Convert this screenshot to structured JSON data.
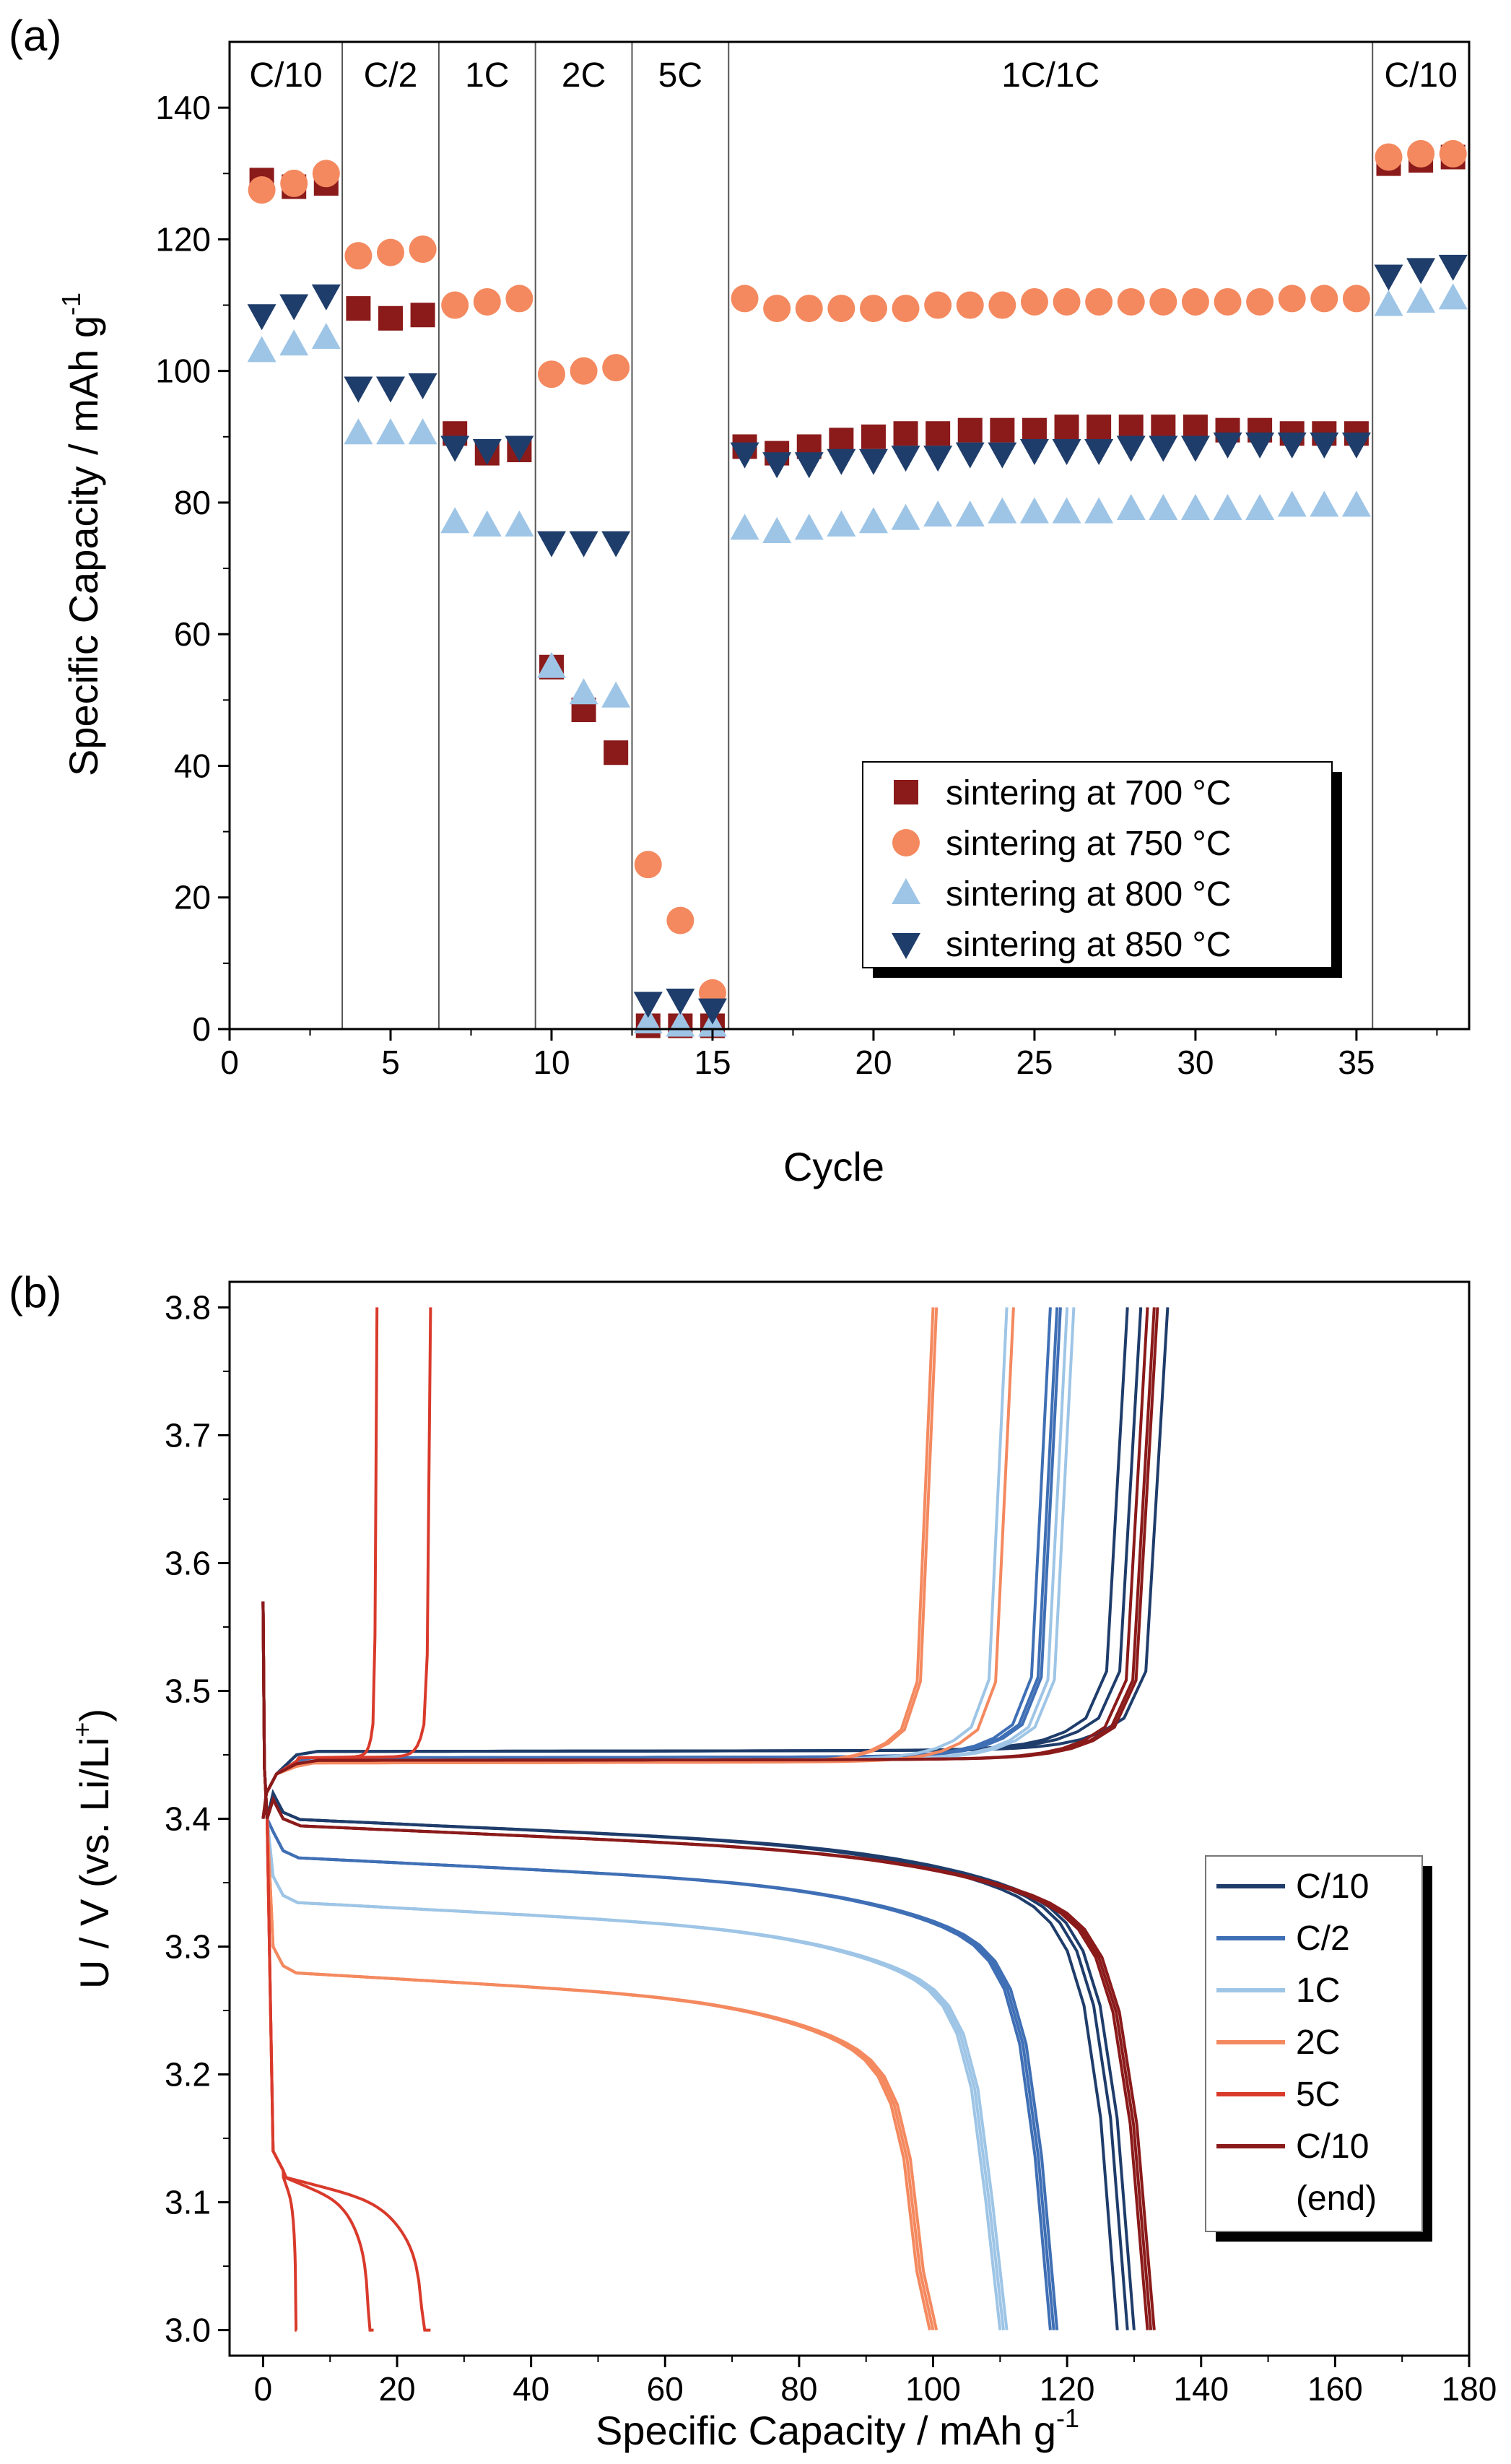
{
  "charts": [
    {
      "panel_label": "(a)",
      "chart_data": {
        "type": "scatter",
        "xlabel": "Cycle",
        "ylabel": "Specific Capacity / mAh g",
        "ylabel_sup": "-1",
        "xlim": [
          0,
          38.5
        ],
        "ylim": [
          0,
          150
        ],
        "xticks": [
          0,
          5,
          10,
          15,
          20,
          25,
          30,
          35
        ],
        "yticks": [
          0,
          20,
          40,
          60,
          80,
          100,
          120,
          140
        ],
        "grid": false,
        "legend_position": "lower-right",
        "rate_segments": [
          {
            "label": "C/10",
            "from": 0,
            "to": 3.5
          },
          {
            "label": "C/2",
            "from": 3.5,
            "to": 6.5
          },
          {
            "label": "1C",
            "from": 6.5,
            "to": 9.5
          },
          {
            "label": "2C",
            "from": 9.5,
            "to": 12.5
          },
          {
            "label": "5C",
            "from": 12.5,
            "to": 15.5
          },
          {
            "label": "1C/1C",
            "from": 15.5,
            "to": 35.5
          },
          {
            "label": "C/10",
            "from": 35.5,
            "to": 38.5
          }
        ],
        "x": [
          1,
          2,
          3,
          4,
          5,
          6,
          7,
          8,
          9,
          10,
          11,
          12,
          13,
          14,
          15,
          16,
          17,
          18,
          19,
          20,
          21,
          22,
          23,
          24,
          25,
          26,
          27,
          28,
          29,
          30,
          31,
          32,
          33,
          34,
          35,
          36,
          37,
          38
        ],
        "series": [
          {
            "name": "sintering at 700 °C",
            "marker": "square",
            "color": "#8b1a1a",
            "values": [
              129,
              128,
              128.5,
              109.5,
              108,
              108.5,
              90.5,
              87.5,
              88,
              55,
              48.5,
              42,
              0.5,
              0.5,
              0.5,
              88.5,
              87.5,
              88.5,
              89.5,
              90,
              90.5,
              90.5,
              91,
              91,
              91,
              91.5,
              91.5,
              91.5,
              91.5,
              91.5,
              91,
              91,
              90.5,
              90.5,
              90.5,
              131.5,
              132,
              132.5
            ]
          },
          {
            "name": "sintering at 750 °C",
            "marker": "circle",
            "color": "#f4895f",
            "values": [
              127.5,
              128.5,
              130,
              117.5,
              118,
              118.5,
              110,
              110.5,
              111,
              99.5,
              100,
              100.5,
              25,
              16.5,
              5.5,
              111,
              109.5,
              109.5,
              109.5,
              109.5,
              109.5,
              110,
              110,
              110,
              110.5,
              110.5,
              110.5,
              110.5,
              110.5,
              110.5,
              110.5,
              110.5,
              111,
              111,
              111,
              132.5,
              133,
              133
            ]
          },
          {
            "name": "sintering at 800 °C",
            "marker": "triangle-up",
            "color": "#9ec5e6",
            "values": [
              103,
              104,
              105,
              90.5,
              90.5,
              90.5,
              77,
              76.5,
              76.5,
              55,
              51,
              50.5,
              1,
              0.5,
              0.5,
              76,
              75.5,
              76,
              76.5,
              77,
              77.5,
              78,
              78,
              78.5,
              78.5,
              78.5,
              78.5,
              79,
              79,
              79,
              79,
              79,
              79.5,
              79.5,
              79.5,
              110,
              110.5,
              111
            ]
          },
          {
            "name": "sintering at 850 °C",
            "marker": "triangle-down",
            "color": "#1f3d6b",
            "values": [
              108.5,
              110,
              111.5,
              97.5,
              97.5,
              98,
              88.5,
              88,
              88.5,
              74,
              74,
              74,
              4,
              4.5,
              3,
              87.5,
              86,
              86,
              86.5,
              86.5,
              87,
              87,
              87.5,
              87.5,
              88,
              88,
              88,
              88.5,
              88.5,
              88.5,
              89,
              89,
              89,
              89,
              89,
              114.5,
              115.5,
              116
            ]
          }
        ]
      }
    },
    {
      "panel_label": "(b)",
      "chart_data": {
        "type": "line",
        "xlabel": "Specific Capacity / mAh g",
        "xlabel_sup": "-1",
        "ylabel_main": "U / V (vs.  Li/Li",
        "ylabel_sup": "+",
        "ylabel_end": ")",
        "xlim": [
          -5,
          180
        ],
        "ylim": [
          2.98,
          3.82
        ],
        "xticks": [
          0,
          20,
          40,
          60,
          80,
          100,
          120,
          140,
          160,
          180
        ],
        "yticks": [
          3.0,
          3.1,
          3.2,
          3.3,
          3.4,
          3.5,
          3.6,
          3.7,
          3.8
        ],
        "grid": false,
        "legend_position": "lower-right",
        "legend_extra": "(end)",
        "series": [
          {
            "name": "C/10",
            "color": "#1f3d6b",
            "charge_end": [
              129,
              131,
              135
            ],
            "discharge_end": [
              127.5,
              129,
              130
            ],
            "charge_plateau": 3.452,
            "discharge_plateau": 3.4
          },
          {
            "name": "C/2",
            "color": "#3f6fb5",
            "charge_end": [
              117.5,
              118.5,
              119
            ],
            "discharge_end": [
              117.5,
              118,
              118.5
            ],
            "charge_plateau": 3.447,
            "discharge_plateau": 3.37
          },
          {
            "name": "1C",
            "color": "#9ec5e6",
            "charge_end": [
              111,
              120,
              121
            ],
            "discharge_end": [
              110,
              110.5,
              111
            ],
            "charge_plateau": 3.445,
            "discharge_plateau": 3.335
          },
          {
            "name": "2C",
            "color": "#f4895f",
            "charge_end": [
              100,
              100.5,
              112
            ],
            "discharge_end": [
              99.5,
              100,
              100.5
            ],
            "charge_plateau": 3.443,
            "discharge_plateau": 3.28
          },
          {
            "name": "5C",
            "color": "#d93a2b",
            "charge_end": [
              17,
              25
            ],
            "discharge_end": [
              5,
              16.5,
              25
            ],
            "charge_plateau": 3.447,
            "discharge_plateau": 3.12
          },
          {
            "name": "C/10",
            "color": "#8b1a1a",
            "charge_end": [
              132,
              133,
              133.5
            ],
            "discharge_end": [
              132,
              132.5,
              133
            ],
            "charge_plateau": 3.445,
            "discharge_plateau": 3.395
          }
        ]
      }
    }
  ]
}
